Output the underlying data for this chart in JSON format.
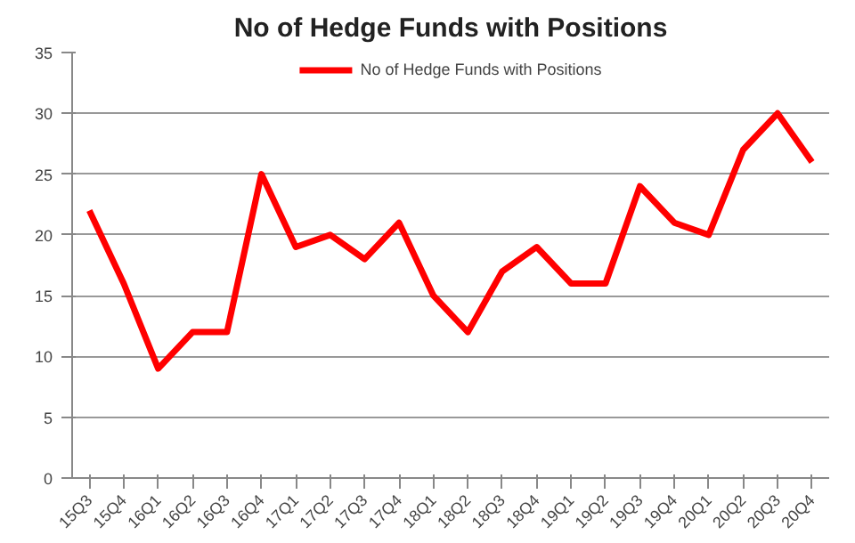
{
  "chart_data": {
    "type": "line",
    "title": "No of Hedge Funds with Positions",
    "categories": [
      "15Q3",
      "15Q4",
      "16Q1",
      "16Q2",
      "16Q3",
      "16Q4",
      "17Q1",
      "17Q2",
      "17Q3",
      "17Q4",
      "18Q1",
      "18Q2",
      "18Q3",
      "18Q4",
      "19Q1",
      "19Q2",
      "19Q3",
      "19Q4",
      "20Q1",
      "20Q2",
      "20Q3",
      "20Q4"
    ],
    "series": [
      {
        "name": "No of Hedge Funds with Positions",
        "color": "#ff0000",
        "values": [
          22,
          16,
          9,
          12,
          12,
          25,
          19,
          20,
          18,
          21,
          15,
          12,
          17,
          19,
          16,
          16,
          24,
          21,
          20,
          27,
          30,
          26
        ]
      }
    ],
    "ylim": [
      0,
      35
    ],
    "yticks": [
      0,
      5,
      10,
      15,
      20,
      25,
      30,
      35
    ],
    "grid": "y",
    "legend": "top",
    "marker": "none",
    "line_style": "solid"
  }
}
